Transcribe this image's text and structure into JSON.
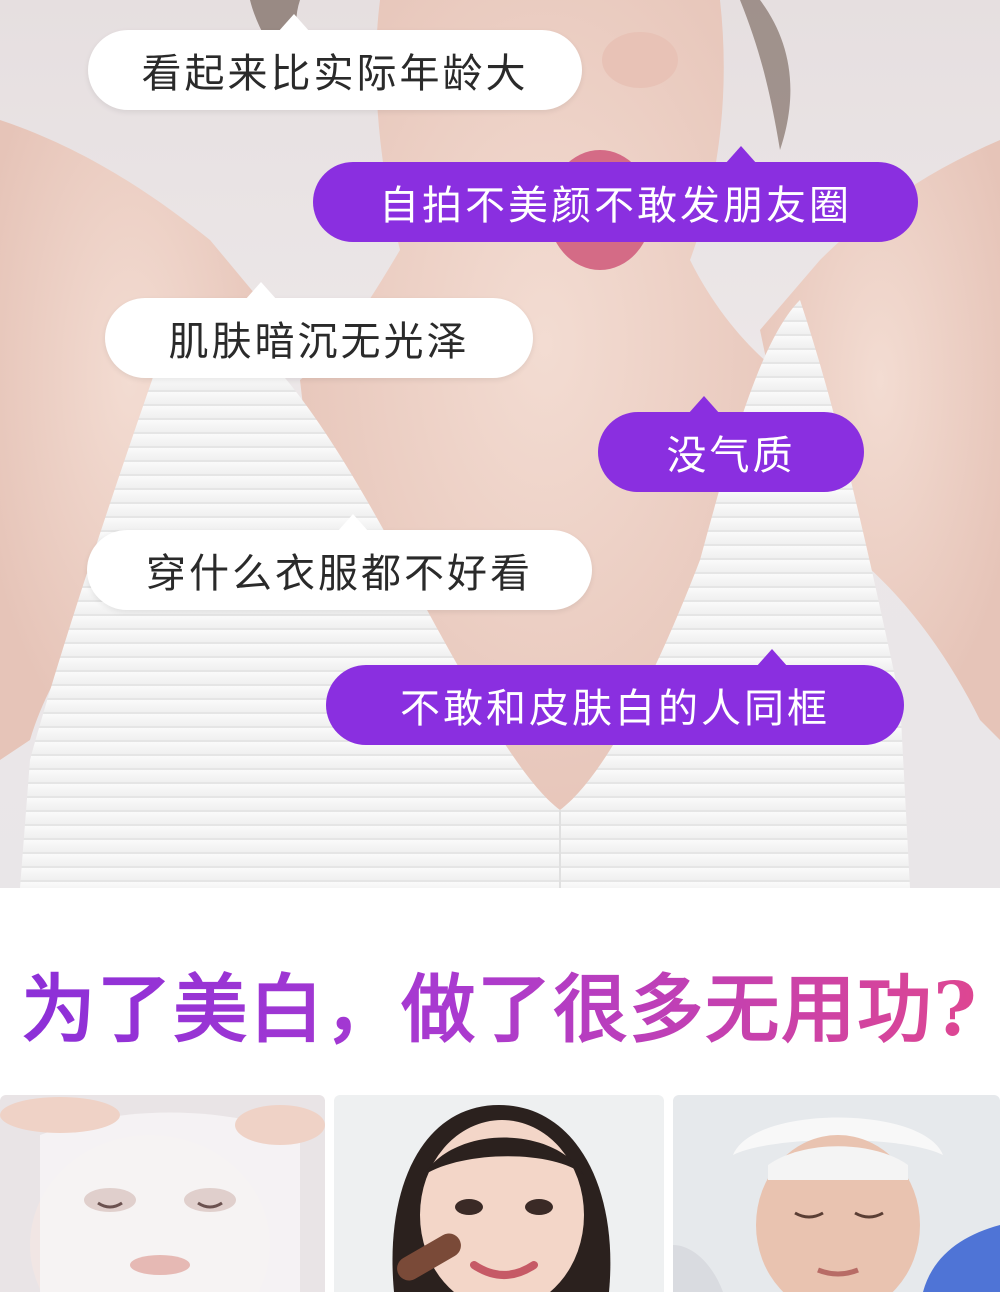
{
  "bubbles": [
    {
      "text": "看起来比实际年龄大",
      "style": "white"
    },
    {
      "text": "自拍不美颜不敢发朋友圈",
      "style": "purple"
    },
    {
      "text": "肌肤暗沉无光泽",
      "style": "white"
    },
    {
      "text": "没气质",
      "style": "purple"
    },
    {
      "text": "穿什么衣服都不好看",
      "style": "white"
    },
    {
      "text": "不敢和皮肤白的人同框",
      "style": "purple"
    }
  ],
  "headline": "为了美白，做了很多无用功?",
  "colors": {
    "purple_bubble": "#8a2fe0",
    "headline_start": "#8b2fd8",
    "headline_end": "#e0478f"
  },
  "photos": [
    {
      "subject": "sheet-mask-face-photo"
    },
    {
      "subject": "makeup-brush-smiling-woman-photo"
    },
    {
      "subject": "facial-treatment-woman-photo"
    }
  ]
}
